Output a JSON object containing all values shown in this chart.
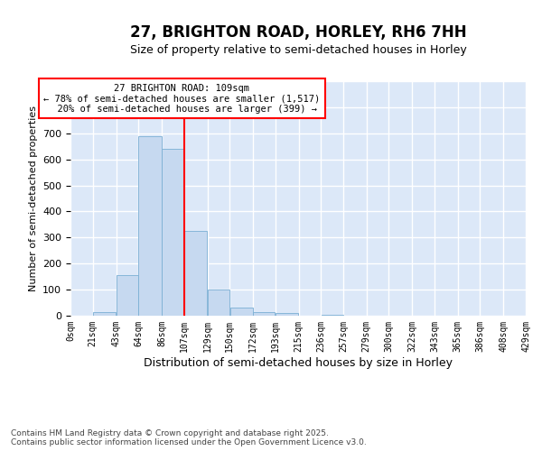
{
  "title": "27, BRIGHTON ROAD, HORLEY, RH6 7HH",
  "subtitle": "Size of property relative to semi-detached houses in Horley",
  "xlabel": "Distribution of semi-detached houses by size in Horley",
  "ylabel": "Number of semi-detached properties",
  "footer_line1": "Contains HM Land Registry data © Crown copyright and database right 2025.",
  "footer_line2": "Contains public sector information licensed under the Open Government Licence v3.0.",
  "bin_edges": [
    0,
    21,
    43,
    64,
    86,
    107,
    129,
    150,
    172,
    193,
    215,
    236,
    257,
    279,
    300,
    322,
    343,
    365,
    386,
    408,
    429
  ],
  "bar_heights": [
    0,
    15,
    155,
    690,
    640,
    325,
    100,
    30,
    15,
    10,
    0,
    5,
    0,
    0,
    0,
    0,
    0,
    0,
    0,
    0
  ],
  "bar_color": "#c6d9f0",
  "bar_edgecolor": "#7bafd4",
  "property_line_x": 107,
  "property_line_color": "red",
  "annotation_text_line1": "27 BRIGHTON ROAD: 109sqm",
  "annotation_text_line2": "← 78% of semi-detached houses are smaller (1,517)",
  "annotation_text_line3": "20% of semi-detached houses are larger (399) →",
  "annotation_box_color": "red",
  "annotation_bg": "white",
  "ylim": [
    0,
    900
  ],
  "xlim": [
    0,
    429
  ],
  "plot_bg_color": "#dce8f8",
  "grid_color": "white",
  "title_fontsize": 12,
  "subtitle_fontsize": 9,
  "tick_label_fontsize": 7,
  "ylabel_fontsize": 8,
  "xlabel_fontsize": 9,
  "footer_fontsize": 6.5,
  "annotation_fontsize": 7.5
}
